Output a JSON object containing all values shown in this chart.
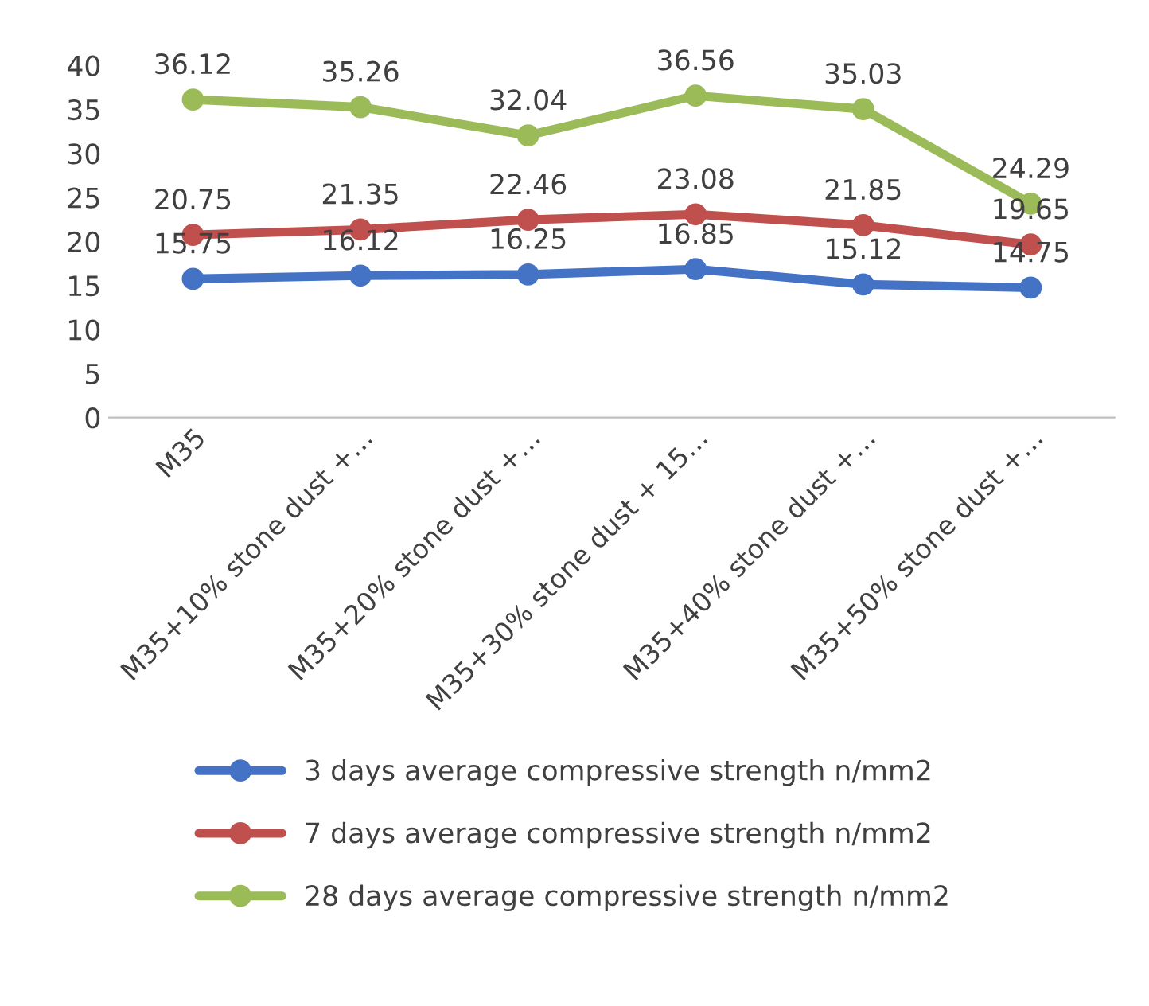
{
  "chart_data": {
    "type": "line",
    "categories": [
      "M35",
      "M35+10% stone dust +…",
      "M35+20% stone dust +…",
      "M35+30% stone dust + 15…",
      "M35+40% stone dust +…",
      "M35+50% stone dust +…"
    ],
    "series": [
      {
        "name": "3 days average compressive strength n/mm2",
        "color": "#4472c4",
        "values": [
          15.75,
          16.12,
          16.25,
          16.85,
          15.12,
          14.75
        ]
      },
      {
        "name": "7 days average compressive strength n/mm2",
        "color": "#c0504d",
        "values": [
          20.75,
          21.35,
          22.46,
          23.08,
          21.85,
          19.65
        ]
      },
      {
        "name": "28 days average compressive strength n/mm2",
        "color": "#9bbb59",
        "values": [
          36.12,
          35.26,
          32.04,
          36.56,
          35.03,
          24.29
        ]
      }
    ],
    "ylim": [
      0,
      40
    ],
    "yticks": [
      0,
      5,
      10,
      15,
      20,
      25,
      30,
      35,
      40
    ],
    "data_labels": true,
    "grid": false,
    "legend": "bottom",
    "marker": "circle",
    "line_style": "solid"
  }
}
